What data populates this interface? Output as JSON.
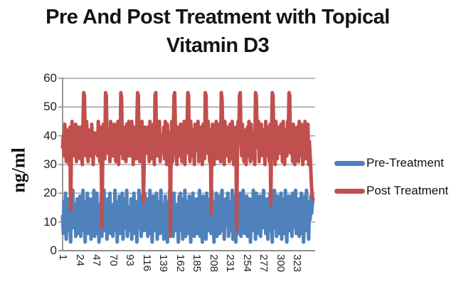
{
  "chart_data": {
    "type": "line",
    "title": "Pre And Post Treatment with Topical Vitamin D3",
    "title_lines": [
      "Pre And Post Treatment with Topical",
      "Vitamin D3"
    ],
    "xlabel": "",
    "ylabel": "ng/ml",
    "ylim": [
      0,
      60
    ],
    "yticks": [
      0,
      10,
      20,
      30,
      40,
      50,
      60
    ],
    "xticks": [
      1,
      24,
      47,
      70,
      93,
      116,
      139,
      162,
      185,
      208,
      231,
      254,
      277,
      300,
      323
    ],
    "x_range": [
      1,
      345
    ],
    "grid": "horizontal",
    "legend_position": "right",
    "grid_color": "#a6a6a6",
    "axis_color": "#8f8f8f",
    "series": [
      {
        "name": "Pre-Treatment",
        "color": "#4F81BD",
        "values": [
          12,
          6,
          17,
          9,
          20,
          4,
          14,
          11,
          18,
          7,
          15,
          3,
          19,
          10,
          21,
          8,
          13,
          16,
          5,
          12,
          18,
          6,
          14,
          9,
          19,
          5,
          15,
          11,
          21,
          7,
          13,
          3,
          17,
          10,
          20,
          6,
          14,
          8,
          18,
          4,
          12,
          16,
          9,
          21,
          5,
          13,
          11,
          20,
          6,
          16,
          3,
          14,
          9,
          19,
          5,
          17,
          12,
          21,
          7,
          10,
          15,
          4,
          18,
          8,
          13,
          20,
          6,
          11,
          16,
          5,
          15,
          10,
          21,
          7,
          17,
          3,
          13,
          9,
          19,
          6,
          16,
          11,
          20,
          4,
          14,
          8,
          18,
          12,
          21,
          5,
          10,
          15,
          13,
          7,
          18,
          4,
          16,
          10,
          20,
          6,
          12,
          17,
          3,
          15,
          9,
          21,
          8,
          14,
          5,
          19,
          11,
          16,
          7,
          20,
          12,
          8,
          18,
          5,
          14,
          10,
          21,
          6,
          16,
          3,
          12,
          19,
          7,
          15,
          11,
          20,
          4,
          13,
          9,
          17,
          6,
          21,
          10,
          14,
          16,
          4,
          12,
          19,
          8,
          15,
          3,
          17,
          11,
          21,
          6,
          13,
          9,
          18,
          5,
          20,
          10,
          14,
          7,
          16,
          12,
          3,
          19,
          10,
          20,
          7,
          15,
          4,
          18,
          12,
          21,
          5,
          13,
          9,
          17,
          6,
          19,
          11,
          3,
          16,
          8,
          20,
          13,
          5,
          15,
          10,
          18,
          6,
          14,
          9,
          21,
          5,
          16,
          11,
          3,
          19,
          8,
          13,
          17,
          4,
          20,
          10,
          15,
          7,
          12,
          18,
          6,
          21,
          9,
          14,
          3,
          17,
          10,
          20,
          5,
          13,
          8,
          19,
          6,
          15,
          11,
          21,
          7,
          16,
          4,
          12,
          18,
          9,
          14,
          20,
          5,
          11,
          7,
          17,
          12,
          21,
          4,
          15,
          9,
          19,
          3,
          13,
          18,
          6,
          16,
          10,
          20,
          5,
          14,
          8,
          21,
          11,
          6,
          17,
          13,
          19,
          5,
          15,
          8,
          18,
          3,
          12,
          16,
          7,
          21,
          10,
          14,
          4,
          20,
          9,
          17,
          6,
          13,
          19,
          5,
          15,
          11,
          8,
          21,
          10,
          16,
          6,
          13,
          18,
          4,
          15,
          9,
          20,
          7,
          12,
          3,
          17,
          11,
          21,
          8,
          14,
          5,
          19,
          10,
          16,
          6,
          12,
          20,
          4,
          16,
          9,
          18,
          6,
          21,
          11,
          3,
          15,
          10,
          19,
          7,
          13,
          17,
          5,
          20,
          8,
          14,
          11,
          21,
          6,
          15,
          8,
          18,
          5,
          13,
          10,
          20,
          6,
          16,
          3,
          12,
          19,
          7,
          21,
          9,
          14,
          4,
          17,
          11,
          19,
          13,
          16,
          18
        ]
      },
      {
        "name": "Post Treatment",
        "color": "#C0504D",
        "values": [
          36,
          40,
          33,
          44,
          38,
          31,
          42,
          35,
          39,
          30,
          43,
          14,
          32,
          45,
          36,
          41,
          33,
          38,
          44,
          31,
          40,
          35,
          43,
          38,
          32,
          43,
          36,
          30,
          44,
          55,
          54,
          39,
          33,
          45,
          37,
          31,
          42,
          35,
          40,
          33,
          44,
          36,
          30,
          41,
          38,
          34,
          37,
          41,
          33,
          45,
          38,
          31,
          43,
          36,
          8,
          30,
          44,
          39,
          32,
          55,
          54,
          40,
          34,
          42,
          36,
          31,
          45,
          38,
          33,
          39,
          33,
          44,
          37,
          31,
          42,
          35,
          45,
          30,
          40,
          34,
          55,
          53,
          38,
          32,
          43,
          36,
          41,
          31,
          44,
          37,
          33,
          45,
          36,
          42,
          33,
          45,
          38,
          30,
          43,
          35,
          40,
          32,
          44,
          55,
          54,
          37,
          31,
          41,
          34,
          45,
          38,
          17,
          30,
          43,
          36,
          40,
          34,
          43,
          37,
          31,
          45,
          38,
          32,
          41,
          35,
          44,
          30,
          54,
          55,
          39,
          33,
          42,
          36,
          45,
          31,
          40,
          34,
          38,
          37,
          43,
          32,
          45,
          36,
          30,
          44,
          38,
          33,
          41,
          5,
          35,
          45,
          31,
          39,
          54,
          55,
          42,
          34,
          30,
          43,
          37,
          41,
          33,
          44,
          36,
          31,
          42,
          38,
          45,
          30,
          40,
          34,
          43,
          55,
          54,
          37,
          31,
          45,
          39,
          33,
          42,
          36,
          30,
          44,
          38,
          41,
          35,
          45,
          31,
          39,
          33,
          43,
          37,
          30,
          44,
          38,
          32,
          55,
          54,
          40,
          34,
          45,
          36,
          31,
          42,
          13,
          38,
          44,
          36,
          30,
          43,
          37,
          45,
          32,
          40,
          34,
          44,
          38,
          31,
          55,
          53,
          41,
          35,
          30,
          45,
          39,
          33,
          43,
          36,
          42,
          31,
          44,
          38,
          32,
          45,
          36,
          30,
          41,
          35,
          43,
          7,
          31,
          45,
          38,
          54,
          55,
          40,
          33,
          44,
          37,
          31,
          42,
          36,
          30,
          39,
          43,
          33,
          45,
          37,
          31,
          44,
          38,
          32,
          41,
          35,
          30,
          55,
          54,
          43,
          36,
          45,
          31,
          40,
          34,
          44,
          38,
          33,
          42,
          36,
          30,
          45,
          39,
          33,
          43,
          37,
          31,
          44,
          16,
          38,
          55,
          54,
          41,
          35,
          30,
          45,
          38,
          32,
          43,
          37,
          42,
          34,
          44,
          38,
          31,
          45,
          36,
          30,
          42,
          37,
          33,
          45,
          40,
          55,
          54,
          34,
          43,
          38,
          31,
          44,
          36,
          30,
          41,
          35,
          43,
          37,
          31,
          45,
          39,
          33,
          44,
          36,
          30,
          42,
          38,
          45,
          32,
          41,
          35,
          44,
          30,
          38,
          33,
          28,
          22,
          19,
          18
        ]
      }
    ]
  }
}
